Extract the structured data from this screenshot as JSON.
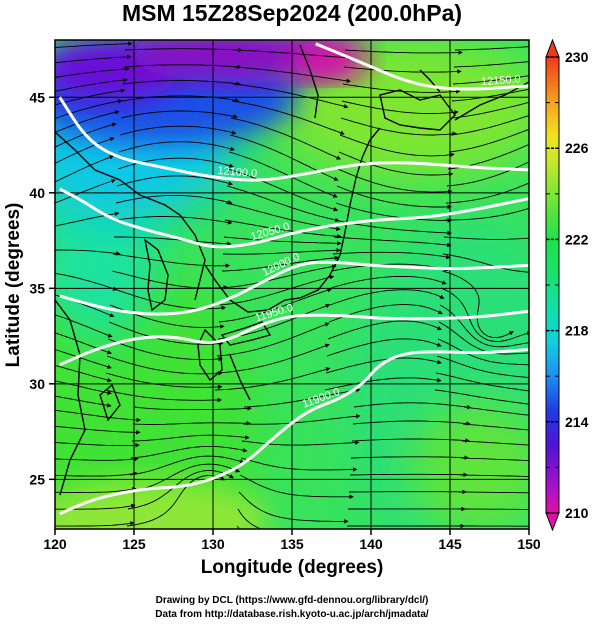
{
  "title": "MSM 15Z28Sep2024 (200.0hPa)",
  "x_axis": {
    "label": "Longitude (degrees)",
    "min": 120,
    "max": 150,
    "ticks": [
      "120",
      "125",
      "130",
      "135",
      "140",
      "145",
      "150"
    ]
  },
  "y_axis": {
    "label": "Latitude  (degrees)",
    "min": 22.4,
    "max": 48.0,
    "ticks": [
      "25",
      "30",
      "35",
      "40",
      "45"
    ]
  },
  "colorbar": {
    "min": 210,
    "max": 230,
    "tick_labels": [
      "210",
      "214",
      "218",
      "222",
      "226",
      "230"
    ],
    "stops": [
      {
        "v": 210,
        "c": "#e0109f"
      },
      {
        "v": 211,
        "c": "#b010c8"
      },
      {
        "v": 213,
        "c": "#4e13d6"
      },
      {
        "v": 214.5,
        "c": "#1e3de6"
      },
      {
        "v": 216,
        "c": "#1d8ff0"
      },
      {
        "v": 217.5,
        "c": "#11cfe0"
      },
      {
        "v": 219,
        "c": "#10e1a8"
      },
      {
        "v": 220.5,
        "c": "#18e26a"
      },
      {
        "v": 222,
        "c": "#1ee24a"
      },
      {
        "v": 224,
        "c": "#7ee632"
      },
      {
        "v": 225.5,
        "c": "#c9e82d"
      },
      {
        "v": 226.5,
        "c": "#f1e31d"
      },
      {
        "v": 228,
        "c": "#f5a41e"
      },
      {
        "v": 230,
        "c": "#ee3a1a"
      }
    ]
  },
  "contour_labels": [
    "12150.0",
    "12100.0",
    "12050.0",
    "12000.0",
    "11950.0",
    "11900.0"
  ],
  "credits": [
    "Drawing by DCL (https://www.gfd-dennou.org/library/dcl/)",
    "Data from http://database.rish.kyoto-u.ac.jp/arch/jmadata/"
  ],
  "chart_data": {
    "type": "heatmap",
    "title": "MSM 15Z28Sep2024 (200.0hPa)",
    "xlabel": "Longitude (degrees)",
    "ylabel": "Latitude  (degrees)",
    "xlim": [
      120,
      150
    ],
    "ylim": [
      22.4,
      48.0
    ],
    "field": "temperature (shaded), geopotential height (contours), wind (streamlines)",
    "color_range": [
      210,
      230
    ],
    "contours": [
      {
        "label": "12150.0",
        "points": [
          [
            136.5,
            47.8
          ],
          [
            138,
            47.3
          ],
          [
            140,
            46.6
          ],
          [
            142,
            45.9
          ],
          [
            144,
            45.5
          ],
          [
            146.5,
            45.4
          ],
          [
            150,
            45.6
          ]
        ]
      },
      {
        "label": "12100.0",
        "points": [
          [
            120.3,
            45
          ],
          [
            122,
            42.8
          ],
          [
            124,
            41.8
          ],
          [
            127,
            41.3
          ],
          [
            130,
            40.8
          ],
          [
            133,
            40.6
          ],
          [
            136,
            41
          ],
          [
            139,
            41.5
          ],
          [
            141.5,
            41.6
          ],
          [
            144,
            41.5
          ],
          [
            147,
            41.3
          ],
          [
            150,
            41.2
          ]
        ]
      },
      {
        "label": "12050.0",
        "points": [
          [
            120.3,
            40.2
          ],
          [
            121.7,
            39.6
          ],
          [
            123.6,
            38.6
          ],
          [
            126,
            38
          ],
          [
            128,
            37.6
          ],
          [
            130,
            37.1
          ],
          [
            132.5,
            37.3
          ],
          [
            135,
            37.9
          ],
          [
            137.5,
            38.3
          ],
          [
            140.5,
            38.6
          ],
          [
            143.5,
            38.7
          ],
          [
            146.5,
            39.1
          ],
          [
            150,
            39.7
          ]
        ]
      },
      {
        "label": "12000.0",
        "points": [
          [
            120.3,
            34.6
          ],
          [
            122,
            34.2
          ],
          [
            124,
            33.8
          ],
          [
            126.5,
            33.6
          ],
          [
            129,
            33.8
          ],
          [
            131.5,
            34.6
          ],
          [
            133.5,
            35.5
          ],
          [
            135.5,
            36.3
          ],
          [
            137.5,
            36.4
          ],
          [
            140,
            36.2
          ],
          [
            142.5,
            36.1
          ],
          [
            145.5,
            36
          ],
          [
            150,
            36.2
          ]
        ]
      },
      {
        "label": "11950.0",
        "points": [
          [
            120.3,
            31
          ],
          [
            122.5,
            31.8
          ],
          [
            125,
            32.4
          ],
          [
            127.5,
            32.5
          ],
          [
            129.5,
            32.1
          ],
          [
            131,
            32.3
          ],
          [
            133,
            33.1
          ],
          [
            135,
            33.6
          ],
          [
            138,
            33.6
          ],
          [
            141,
            33.4
          ],
          [
            144,
            33.4
          ],
          [
            147,
            33.5
          ],
          [
            150,
            33.8
          ]
        ]
      },
      {
        "label": "11900.0",
        "points": [
          [
            120.3,
            23.2
          ],
          [
            122.5,
            24
          ],
          [
            125.5,
            24.5
          ],
          [
            128,
            24.6
          ],
          [
            130,
            25
          ],
          [
            132,
            25.8
          ],
          [
            134,
            27.3
          ],
          [
            136,
            28.6
          ],
          [
            138,
            29.2
          ],
          [
            139.5,
            30
          ],
          [
            140.5,
            31
          ],
          [
            142,
            31.6
          ],
          [
            144,
            31.7
          ],
          [
            147,
            31.6
          ],
          [
            150,
            31.8
          ]
        ]
      }
    ]
  }
}
